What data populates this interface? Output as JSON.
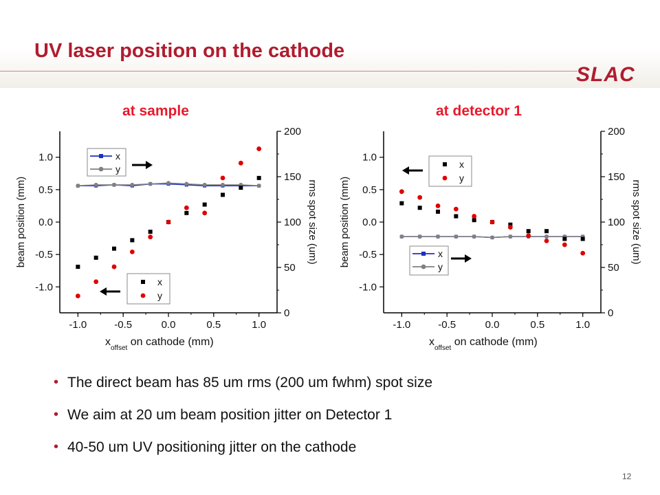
{
  "slide": {
    "title": "UV laser position on the cathode",
    "logo": "SLAC",
    "page_number": "12",
    "bullets": [
      "The direct beam has 85 um rms (200 um fwhm) spot size",
      "We aim at 20 um beam position jitter on Detector 1",
      "40-50 um UV positioning jitter on the cathode"
    ],
    "subheads": [
      "at sample",
      "at detector 1"
    ]
  },
  "colors": {
    "title": "#b01c2e",
    "subhead": "#e8192c",
    "x_marker": "#000000",
    "y_marker": "#e00000",
    "x_size_line": "#1f2fbf",
    "y_size_line": "#808080"
  },
  "chart_data": [
    {
      "type": "scatter",
      "title": "at sample",
      "xlabel_main": "x",
      "xlabel_sub": "offset",
      "xlabel_rest": " on cathode (mm)",
      "ylabel_left": "beam position (mm)",
      "ylabel_right": "rms spot size (um)",
      "xlim": [
        -1.2,
        1.2
      ],
      "ylim_left": [
        -1.4,
        1.4
      ],
      "ylim_right": [
        0,
        200
      ],
      "x_ticks": [
        "-1.0",
        "-0.5",
        "0.0",
        "0.5",
        "1.0"
      ],
      "y_left_ticks": [
        "-1.0",
        "-0.5",
        "0.0",
        "0.5",
        "1.0"
      ],
      "y_right_ticks": [
        "0",
        "50",
        "100",
        "150",
        "200"
      ],
      "position_legend": [
        "x",
        "y"
      ],
      "size_legend": [
        "x",
        "y"
      ],
      "x": [
        -1.0,
        -0.8,
        -0.6,
        -0.4,
        -0.2,
        0.0,
        0.2,
        0.4,
        0.6,
        0.8,
        1.0
      ],
      "position_series": [
        {
          "name": "x",
          "values": [
            -0.69,
            -0.55,
            -0.41,
            -0.28,
            -0.15,
            0.0,
            0.14,
            0.27,
            0.42,
            0.53,
            0.68
          ]
        },
        {
          "name": "y",
          "values": [
            -1.14,
            -0.92,
            -0.69,
            -0.46,
            -0.23,
            0.0,
            0.22,
            0.14,
            0.68,
            0.91,
            1.13
          ]
        }
      ],
      "size_series": [
        {
          "name": "x",
          "values": [
            140,
            140,
            141,
            140,
            142,
            142,
            141,
            140,
            140,
            140,
            140
          ]
        },
        {
          "name": "y",
          "values": [
            140,
            141,
            141,
            141,
            142,
            143,
            142,
            141,
            141,
            141,
            140
          ]
        }
      ],
      "arrows": [
        "right",
        "left"
      ]
    },
    {
      "type": "scatter",
      "title": "at detector 1",
      "xlabel_main": "x",
      "xlabel_sub": "offset",
      "xlabel_rest": " on cathode (mm)",
      "ylabel_left": "beam position (mm)",
      "ylabel_right": "rms spot size (um)",
      "xlim": [
        -1.2,
        1.2
      ],
      "ylim_left": [
        -1.4,
        1.4
      ],
      "ylim_right": [
        0,
        200
      ],
      "x_ticks": [
        "-1.0",
        "-0.5",
        "0.0",
        "0.5",
        "1.0"
      ],
      "y_left_ticks": [
        "-1.0",
        "-0.5",
        "0.0",
        "0.5",
        "1.0"
      ],
      "y_right_ticks": [
        "0",
        "50",
        "100",
        "150",
        "200"
      ],
      "position_legend": [
        "x",
        "y"
      ],
      "size_legend": [
        "x",
        "y"
      ],
      "x": [
        -1.0,
        -0.8,
        -0.6,
        -0.4,
        -0.2,
        0.0,
        0.2,
        0.4,
        0.6,
        0.8,
        1.0
      ],
      "position_series": [
        {
          "name": "x",
          "values": [
            0.29,
            0.22,
            0.16,
            0.09,
            0.03,
            0.0,
            -0.04,
            -0.14,
            -0.14,
            -0.26,
            -0.26
          ]
        },
        {
          "name": "y",
          "values": [
            0.47,
            0.38,
            0.25,
            0.2,
            0.09,
            0.0,
            -0.08,
            -0.21,
            -0.29,
            -0.35,
            -0.48
          ]
        }
      ],
      "size_series": [
        {
          "name": "x",
          "values": [
            84,
            84,
            84,
            84,
            84,
            83,
            84,
            84,
            84,
            84,
            84
          ]
        },
        {
          "name": "y",
          "values": [
            84,
            84,
            84,
            84,
            84,
            83,
            84,
            84,
            84,
            84,
            84
          ]
        }
      ],
      "arrows": [
        "left",
        "right"
      ]
    }
  ]
}
